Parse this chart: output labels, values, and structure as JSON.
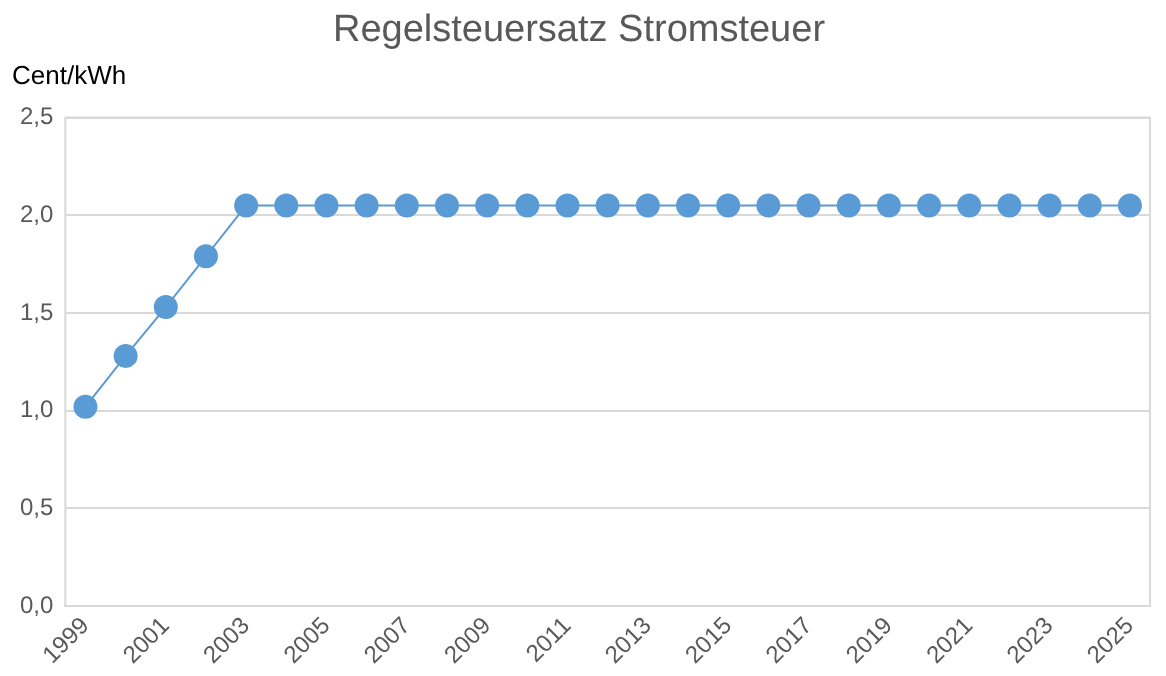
{
  "chart_data": {
    "type": "line",
    "title": "Regelsteuersatz Stromsteuer",
    "ylabel": "Cent/kWh",
    "categories": [
      "1999",
      null,
      "2001",
      null,
      "2003",
      null,
      "2005",
      null,
      "2007",
      null,
      "2009",
      null,
      "2011",
      null,
      "2013",
      null,
      "2015",
      null,
      "2017",
      null,
      "2019",
      null,
      "2021",
      null,
      "2023",
      null,
      "2025"
    ],
    "series": [
      {
        "color": "#5b9bd5",
        "values": [
          1.02,
          1.28,
          1.53,
          1.79,
          2.05,
          2.05,
          2.05,
          2.05,
          2.05,
          2.05,
          2.05,
          2.05,
          2.05,
          2.05,
          2.05,
          2.05,
          2.05,
          2.05,
          2.05,
          2.05,
          2.05,
          2.05,
          2.05,
          2.05,
          2.05,
          2.05,
          2.05
        ]
      }
    ],
    "ylim": [
      0,
      2.5
    ],
    "yticks": [
      {
        "value": 0,
        "label": "0,0"
      },
      {
        "value": 0.5,
        "label": "0,5"
      },
      {
        "value": 1,
        "label": "1,0"
      },
      {
        "value": 1.5,
        "label": "1,5"
      },
      {
        "value": 2,
        "label": "2,0"
      },
      {
        "value": 2.5,
        "label": "2,5"
      }
    ],
    "grid": "y",
    "marker": "circle",
    "line_style": "solid",
    "legend": false
  }
}
